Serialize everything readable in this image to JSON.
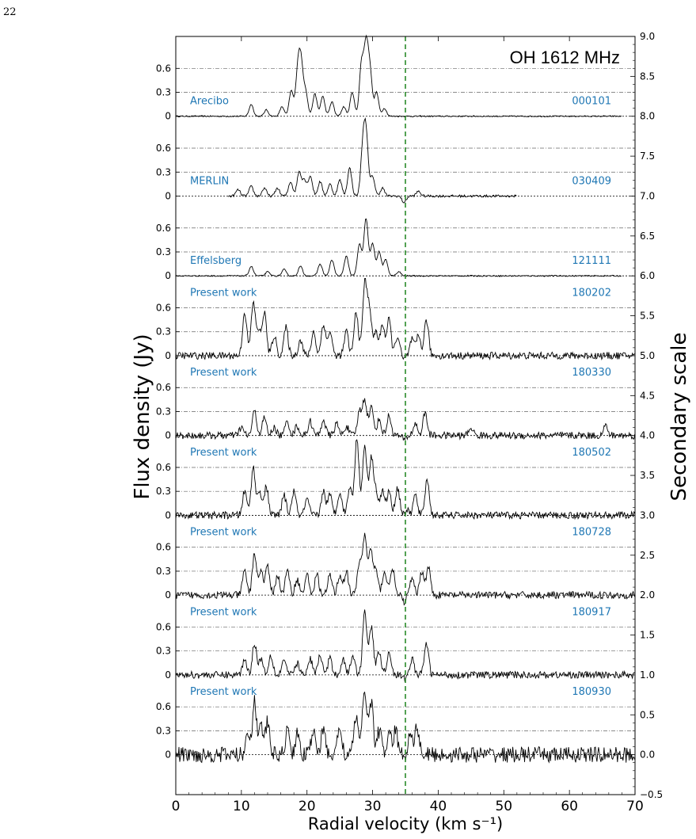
{
  "page_number": "22",
  "chart_data": {
    "type": "line",
    "title": "OH 1612 MHz",
    "xlabel": "Radial velocity (km s⁻¹)",
    "ylabel": "Flux density (Jy)",
    "y2label": "Secondary scale",
    "xlim": [
      0,
      70
    ],
    "y2lim": [
      -0.5,
      9.0
    ],
    "xticks": [
      "0",
      "10",
      "20",
      "30",
      "40",
      "50",
      "60",
      "70"
    ],
    "y2ticks": [
      "9.0",
      "8.5",
      "8.0",
      "7.5",
      "7.0",
      "6.5",
      "6.0",
      "5.5",
      "5.0",
      "4.5",
      "4.0",
      "3.5",
      "3.0",
      "2.5",
      "2.0",
      "1.5",
      "1.0",
      "0.5",
      "0.0",
      "−0.5"
    ],
    "panel_yticks": [
      "0.6",
      "0.3",
      "0"
    ],
    "reference_velocity": 35,
    "reference_line_color": "#2a8a2a",
    "label_color": "#1f77b4",
    "grid": true,
    "spectra": [
      {
        "telescope": "Arecibo",
        "date": "000101",
        "offset": 8,
        "vmin": 0,
        "vmax": 68,
        "peaks": [
          [
            11.5,
            0.15
          ],
          [
            13.8,
            0.08
          ],
          [
            16.2,
            0.12
          ],
          [
            17.6,
            0.32
          ],
          [
            18.6,
            0.55
          ],
          [
            19.1,
            0.6
          ],
          [
            19.8,
            0.3
          ],
          [
            21.2,
            0.28
          ],
          [
            22.4,
            0.25
          ],
          [
            23.8,
            0.18
          ],
          [
            25.6,
            0.12
          ],
          [
            26.9,
            0.3
          ],
          [
            28.3,
            0.65
          ],
          [
            29.0,
            0.85
          ],
          [
            29.6,
            0.55
          ],
          [
            30.6,
            0.3
          ],
          [
            31.8,
            0.1
          ]
        ]
      },
      {
        "telescope": "MERLIN",
        "date": "030409",
        "offset": 7,
        "vmin": 8,
        "vmax": 52,
        "peaks": [
          [
            9.5,
            0.08
          ],
          [
            11.5,
            0.12
          ],
          [
            13.5,
            0.1
          ],
          [
            15.5,
            0.1
          ],
          [
            17.5,
            0.18
          ],
          [
            18.8,
            0.3
          ],
          [
            19.6,
            0.2
          ],
          [
            20.5,
            0.25
          ],
          [
            22.0,
            0.18
          ],
          [
            23.5,
            0.15
          ],
          [
            25.0,
            0.2
          ],
          [
            26.5,
            0.35
          ],
          [
            28.5,
            0.55
          ],
          [
            29.0,
            0.75
          ],
          [
            30.0,
            0.25
          ],
          [
            31.5,
            0.1
          ],
          [
            34.8,
            -0.08
          ],
          [
            37.0,
            0.06
          ]
        ]
      },
      {
        "telescope": "Effelsberg",
        "date": "121111",
        "offset": 6,
        "vmin": 0,
        "vmax": 68,
        "peaks": [
          [
            11.5,
            0.12
          ],
          [
            14.0,
            0.05
          ],
          [
            16.5,
            0.08
          ],
          [
            19.0,
            0.12
          ],
          [
            22.0,
            0.15
          ],
          [
            23.8,
            0.2
          ],
          [
            26.0,
            0.25
          ],
          [
            28.0,
            0.4
          ],
          [
            29.0,
            0.72
          ],
          [
            30.0,
            0.4
          ],
          [
            31.0,
            0.3
          ],
          [
            32.0,
            0.2
          ],
          [
            34.0,
            0.05
          ]
        ]
      },
      {
        "telescope": "Present work",
        "date": "180202",
        "offset": 5,
        "vmin": 0,
        "vmax": 70,
        "peaks": [
          [
            10.5,
            0.55
          ],
          [
            11.8,
            0.65
          ],
          [
            12.6,
            0.3
          ],
          [
            13.5,
            0.55
          ],
          [
            15.0,
            0.25
          ],
          [
            16.8,
            0.35
          ],
          [
            19.0,
            0.2
          ],
          [
            21.0,
            0.3
          ],
          [
            22.5,
            0.4
          ],
          [
            23.5,
            0.3
          ],
          [
            26.0,
            0.3
          ],
          [
            27.5,
            0.55
          ],
          [
            28.8,
            0.88
          ],
          [
            29.5,
            0.6
          ],
          [
            30.5,
            0.3
          ],
          [
            31.5,
            0.4
          ],
          [
            32.5,
            0.45
          ],
          [
            33.8,
            0.25
          ],
          [
            34.8,
            -0.05
          ],
          [
            36.0,
            0.2
          ],
          [
            37.0,
            0.25
          ],
          [
            38.2,
            0.45
          ]
        ]
      },
      {
        "telescope": "Present work",
        "date": "180330",
        "offset": 4,
        "vmin": 0,
        "vmax": 70,
        "peaks": [
          [
            10.0,
            0.1
          ],
          [
            12.0,
            0.3
          ],
          [
            13.5,
            0.22
          ],
          [
            15.0,
            0.1
          ],
          [
            17.0,
            0.18
          ],
          [
            18.5,
            0.12
          ],
          [
            20.5,
            0.18
          ],
          [
            22.5,
            0.2
          ],
          [
            24.5,
            0.15
          ],
          [
            26.0,
            0.12
          ],
          [
            28.0,
            0.3
          ],
          [
            28.8,
            0.45
          ],
          [
            29.8,
            0.35
          ],
          [
            31.0,
            0.2
          ],
          [
            32.5,
            0.25
          ],
          [
            34.8,
            -0.05
          ],
          [
            36.5,
            0.15
          ],
          [
            38.0,
            0.28
          ],
          [
            45.0,
            0.1
          ],
          [
            65.5,
            0.12
          ]
        ]
      },
      {
        "telescope": "Present work",
        "date": "180502",
        "offset": 3,
        "vmin": 0,
        "vmax": 70,
        "peaks": [
          [
            10.5,
            0.3
          ],
          [
            11.8,
            0.6
          ],
          [
            12.8,
            0.3
          ],
          [
            13.8,
            0.35
          ],
          [
            16.5,
            0.25
          ],
          [
            18.0,
            0.3
          ],
          [
            20.0,
            0.2
          ],
          [
            22.5,
            0.3
          ],
          [
            23.5,
            0.25
          ],
          [
            25.0,
            0.3
          ],
          [
            26.5,
            0.35
          ],
          [
            27.6,
            0.98
          ],
          [
            28.8,
            0.88
          ],
          [
            29.8,
            0.7
          ],
          [
            30.5,
            0.3
          ],
          [
            31.5,
            0.3
          ],
          [
            32.5,
            0.3
          ],
          [
            33.8,
            0.35
          ],
          [
            35.2,
            0.06
          ],
          [
            36.5,
            0.25
          ],
          [
            38.3,
            0.45
          ]
        ]
      },
      {
        "telescope": "Present work",
        "date": "180728",
        "offset": 2,
        "vmin": 0,
        "vmax": 70,
        "peaks": [
          [
            10.5,
            0.3
          ],
          [
            12.0,
            0.52
          ],
          [
            13.0,
            0.3
          ],
          [
            14.0,
            0.35
          ],
          [
            15.5,
            0.25
          ],
          [
            17.0,
            0.3
          ],
          [
            18.5,
            0.2
          ],
          [
            20.0,
            0.25
          ],
          [
            21.5,
            0.25
          ],
          [
            23.5,
            0.25
          ],
          [
            25.0,
            0.25
          ],
          [
            26.0,
            0.3
          ],
          [
            28.0,
            0.4
          ],
          [
            28.8,
            0.72
          ],
          [
            29.7,
            0.55
          ],
          [
            30.5,
            0.3
          ],
          [
            31.8,
            0.3
          ],
          [
            33.0,
            0.35
          ],
          [
            34.8,
            -0.08
          ],
          [
            36.0,
            0.2
          ],
          [
            37.5,
            0.3
          ],
          [
            38.5,
            0.35
          ]
        ]
      },
      {
        "telescope": "Present work",
        "date": "180917",
        "offset": 1,
        "vmin": 0,
        "vmax": 70,
        "peaks": [
          [
            10.5,
            0.2
          ],
          [
            12.0,
            0.4
          ],
          [
            13.0,
            0.2
          ],
          [
            14.5,
            0.25
          ],
          [
            16.5,
            0.2
          ],
          [
            18.5,
            0.15
          ],
          [
            20.5,
            0.2
          ],
          [
            22.0,
            0.25
          ],
          [
            23.5,
            0.2
          ],
          [
            25.5,
            0.2
          ],
          [
            27.0,
            0.25
          ],
          [
            28.8,
            0.8
          ],
          [
            29.8,
            0.6
          ],
          [
            31.0,
            0.3
          ],
          [
            32.5,
            0.3
          ],
          [
            34.8,
            -0.05
          ],
          [
            36.0,
            0.2
          ],
          [
            38.2,
            0.4
          ]
        ]
      },
      {
        "telescope": "Present work",
        "date": "180930",
        "offset": 0,
        "vmin": 0,
        "vmax": 70,
        "peaks": [
          [
            11.0,
            0.3
          ],
          [
            12.0,
            0.65
          ],
          [
            13.0,
            0.35
          ],
          [
            14.0,
            0.4
          ],
          [
            17.0,
            0.3
          ],
          [
            18.5,
            0.25
          ],
          [
            21.0,
            0.35
          ],
          [
            22.5,
            0.3
          ],
          [
            25.0,
            0.35
          ],
          [
            27.5,
            0.5
          ],
          [
            28.8,
            0.85
          ],
          [
            29.8,
            0.65
          ],
          [
            31.0,
            0.3
          ],
          [
            32.5,
            0.25
          ],
          [
            33.5,
            0.3
          ],
          [
            35.8,
            0.3
          ],
          [
            36.8,
            0.35
          ]
        ]
      }
    ]
  }
}
